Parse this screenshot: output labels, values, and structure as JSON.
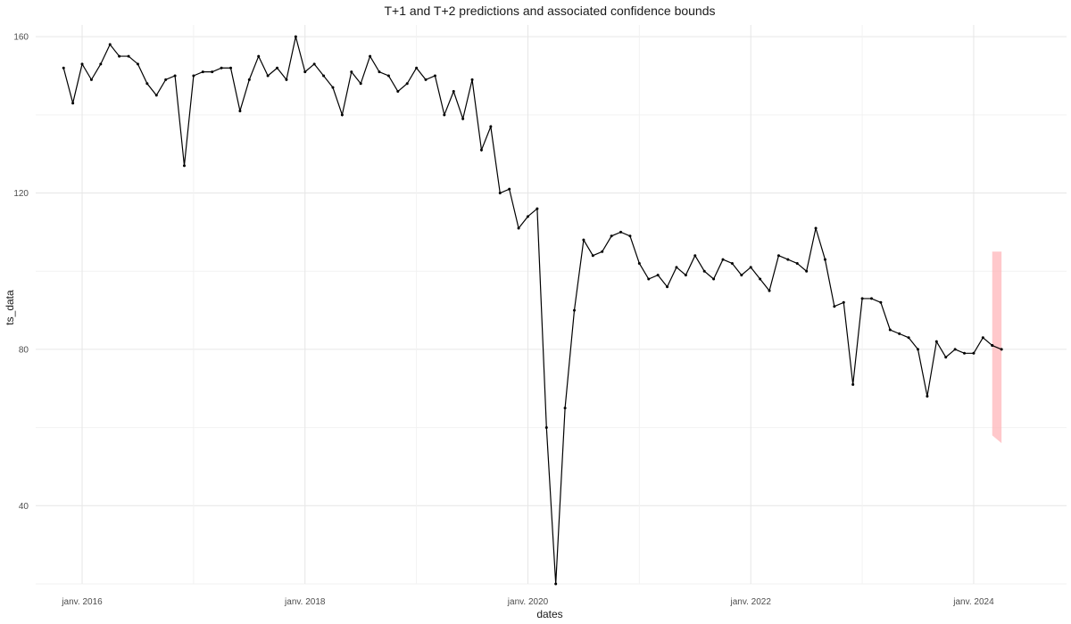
{
  "chart_data": {
    "type": "line",
    "title": "T+1 and T+2 predictions and associated confidence bounds",
    "xlabel": "dates",
    "ylabel": "ts_data",
    "x_tick_labels": [
      "janv. 2016",
      "janv. 2018",
      "janv. 2020",
      "janv. 2022",
      "janv. 2024"
    ],
    "y_ticks": [
      40,
      80,
      120,
      160
    ],
    "ylim": [
      20,
      163
    ],
    "xlim": [
      "2015-08",
      "2024-11"
    ],
    "grid": true,
    "series": [
      {
        "points": [
          [
            "2015-11",
            152
          ],
          [
            "2015-12",
            143
          ],
          [
            "2016-01",
            153
          ],
          [
            "2016-02",
            149
          ],
          [
            "2016-03",
            153
          ],
          [
            "2016-04",
            158
          ],
          [
            "2016-05",
            155
          ],
          [
            "2016-06",
            155
          ],
          [
            "2016-07",
            153
          ],
          [
            "2016-08",
            148
          ],
          [
            "2016-09",
            145
          ],
          [
            "2016-10",
            149
          ],
          [
            "2016-11",
            150
          ],
          [
            "2016-12",
            127
          ],
          [
            "2017-01",
            150
          ],
          [
            "2017-02",
            151
          ],
          [
            "2017-03",
            151
          ],
          [
            "2017-04",
            152
          ],
          [
            "2017-05",
            152
          ],
          [
            "2017-06",
            141
          ],
          [
            "2017-07",
            149
          ],
          [
            "2017-08",
            155
          ],
          [
            "2017-09",
            150
          ],
          [
            "2017-10",
            152
          ],
          [
            "2017-11",
            149
          ],
          [
            "2017-12",
            160
          ],
          [
            "2018-01",
            151
          ],
          [
            "2018-02",
            153
          ],
          [
            "2018-03",
            150
          ],
          [
            "2018-04",
            147
          ],
          [
            "2018-05",
            140
          ],
          [
            "2018-06",
            151
          ],
          [
            "2018-07",
            148
          ],
          [
            "2018-08",
            155
          ],
          [
            "2018-09",
            151
          ],
          [
            "2018-10",
            150
          ],
          [
            "2018-11",
            146
          ],
          [
            "2018-12",
            148
          ],
          [
            "2019-01",
            152
          ],
          [
            "2019-02",
            149
          ],
          [
            "2019-03",
            150
          ],
          [
            "2019-04",
            140
          ],
          [
            "2019-05",
            146
          ],
          [
            "2019-06",
            139
          ],
          [
            "2019-07",
            149
          ],
          [
            "2019-08",
            131
          ],
          [
            "2019-09",
            137
          ],
          [
            "2019-10",
            120
          ],
          [
            "2019-11",
            121
          ],
          [
            "2019-12",
            111
          ],
          [
            "2020-01",
            114
          ],
          [
            "2020-02",
            116
          ],
          [
            "2020-03",
            60
          ],
          [
            "2020-04",
            20
          ],
          [
            "2020-05",
            65
          ],
          [
            "2020-06",
            90
          ],
          [
            "2020-07",
            108
          ],
          [
            "2020-08",
            104
          ],
          [
            "2020-09",
            105
          ],
          [
            "2020-10",
            109
          ],
          [
            "2020-11",
            110
          ],
          [
            "2020-12",
            109
          ],
          [
            "2021-01",
            102
          ],
          [
            "2021-02",
            98
          ],
          [
            "2021-03",
            99
          ],
          [
            "2021-04",
            96
          ],
          [
            "2021-05",
            101
          ],
          [
            "2021-06",
            99
          ],
          [
            "2021-07",
            104
          ],
          [
            "2021-08",
            100
          ],
          [
            "2021-09",
            98
          ],
          [
            "2021-10",
            103
          ],
          [
            "2021-11",
            102
          ],
          [
            "2021-12",
            99
          ],
          [
            "2022-01",
            101
          ],
          [
            "2022-02",
            98
          ],
          [
            "2022-03",
            95
          ],
          [
            "2022-04",
            104
          ],
          [
            "2022-05",
            103
          ],
          [
            "2022-06",
            102
          ],
          [
            "2022-07",
            100
          ],
          [
            "2022-08",
            111
          ],
          [
            "2022-09",
            103
          ],
          [
            "2022-10",
            91
          ],
          [
            "2022-11",
            92
          ],
          [
            "2022-12",
            71
          ],
          [
            "2023-01",
            93
          ],
          [
            "2023-02",
            93
          ],
          [
            "2023-03",
            92
          ],
          [
            "2023-04",
            85
          ],
          [
            "2023-05",
            84
          ],
          [
            "2023-06",
            83
          ],
          [
            "2023-07",
            80
          ],
          [
            "2023-08",
            68
          ],
          [
            "2023-09",
            82
          ],
          [
            "2023-10",
            78
          ],
          [
            "2023-11",
            80
          ],
          [
            "2023-12",
            79
          ],
          [
            "2024-01",
            79
          ],
          [
            "2024-02",
            83
          ],
          [
            "2024-03",
            81
          ]
        ],
        "color": "#000000"
      }
    ],
    "predictions": [
      {
        "x": "2024-03",
        "value": 81,
        "lower": 58,
        "upper": 105
      },
      {
        "x": "2024-04",
        "value": 80,
        "lower": 56,
        "upper": 105
      }
    ],
    "band_color": "#ffb6b9"
  }
}
